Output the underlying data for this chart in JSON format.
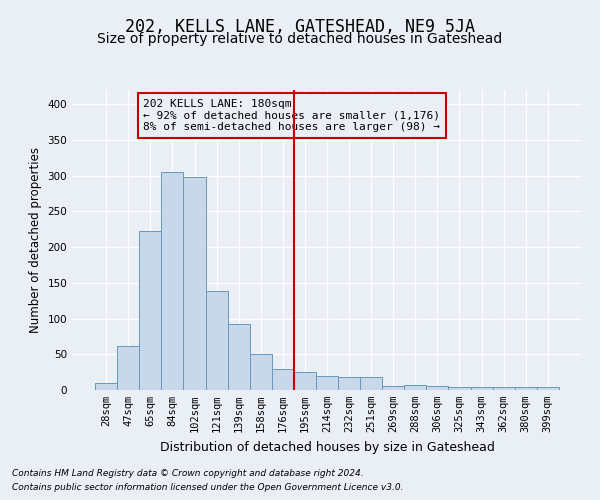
{
  "title": "202, KELLS LANE, GATESHEAD, NE9 5JA",
  "subtitle": "Size of property relative to detached houses in Gateshead",
  "xlabel": "Distribution of detached houses by size in Gateshead",
  "ylabel": "Number of detached properties",
  "categories": [
    "28sqm",
    "47sqm",
    "65sqm",
    "84sqm",
    "102sqm",
    "121sqm",
    "139sqm",
    "158sqm",
    "176sqm",
    "195sqm",
    "214sqm",
    "232sqm",
    "251sqm",
    "269sqm",
    "288sqm",
    "306sqm",
    "325sqm",
    "343sqm",
    "362sqm",
    "380sqm",
    "399sqm"
  ],
  "values": [
    10,
    62,
    222,
    305,
    298,
    138,
    92,
    50,
    30,
    25,
    20,
    18,
    18,
    5,
    7,
    5,
    4,
    4,
    4,
    4,
    4
  ],
  "bar_color": "#c8d8ea",
  "bar_edge_color": "#6699bb",
  "bg_color": "#eaeff6",
  "vline_color": "#cc0000",
  "vline_x_idx": 8.5,
  "annotation_text": "202 KELLS LANE: 180sqm\n← 92% of detached houses are smaller (1,176)\n8% of semi-detached houses are larger (98) →",
  "annotation_box_edgecolor": "#cc0000",
  "footnote1": "Contains HM Land Registry data © Crown copyright and database right 2024.",
  "footnote2": "Contains public sector information licensed under the Open Government Licence v3.0.",
  "ylim": [
    0,
    420
  ],
  "yticks": [
    0,
    50,
    100,
    150,
    200,
    250,
    300,
    350,
    400
  ],
  "title_fontsize": 12,
  "subtitle_fontsize": 10,
  "xlabel_fontsize": 9,
  "ylabel_fontsize": 8.5,
  "tick_fontsize": 7.5,
  "annot_fontsize": 8,
  "footnote_fontsize": 6.5
}
